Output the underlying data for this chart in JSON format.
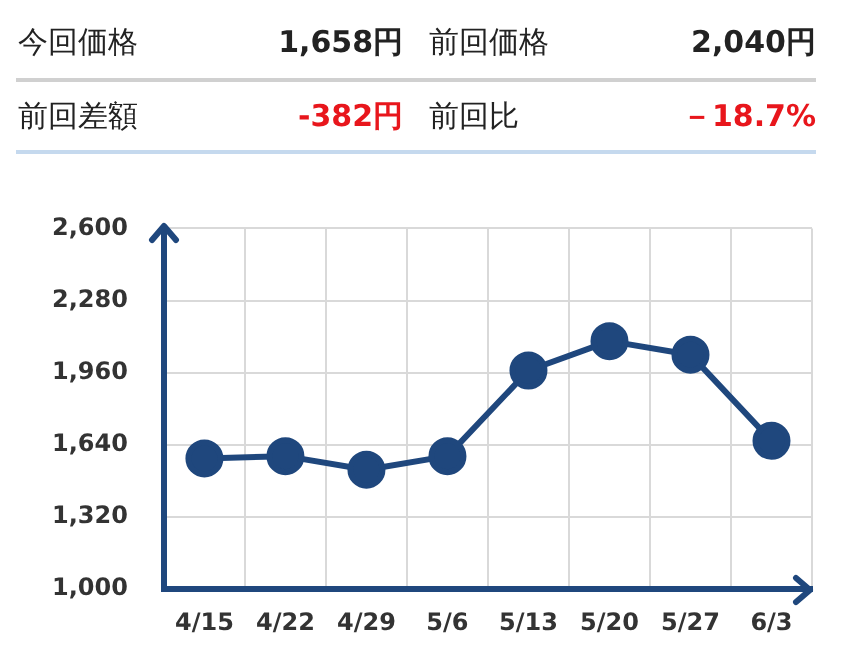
{
  "chart_data": {
    "type": "line",
    "annotations": [
      "今回価格",
      "1,658円",
      "前回価格",
      "2,040円",
      "前回差額",
      "-382円",
      "前回比",
      "－18.7%"
    ],
    "categories": [
      "4/15",
      "4/22",
      "4/29",
      "5/6",
      "5/13",
      "5/20",
      "5/27",
      "6/3"
    ],
    "series": [
      {
        "color": "#1f477d",
        "values": [
          1580,
          1590,
          1530,
          1590,
          1970,
          2100,
          2040,
          1658
        ]
      }
    ],
    "ylim": [
      1000,
      2600
    ],
    "yticks": [
      {
        "value": 1000,
        "label": "1,000"
      },
      {
        "value": 1320,
        "label": "1,320"
      },
      {
        "value": 1640,
        "label": "1,640"
      },
      {
        "value": 1960,
        "label": "1,960"
      },
      {
        "value": 2280,
        "label": "2,280"
      },
      {
        "value": 2600,
        "label": "2,600"
      }
    ],
    "grid": true,
    "marker": "circle",
    "line_style": "solid",
    "legend": false
  }
}
